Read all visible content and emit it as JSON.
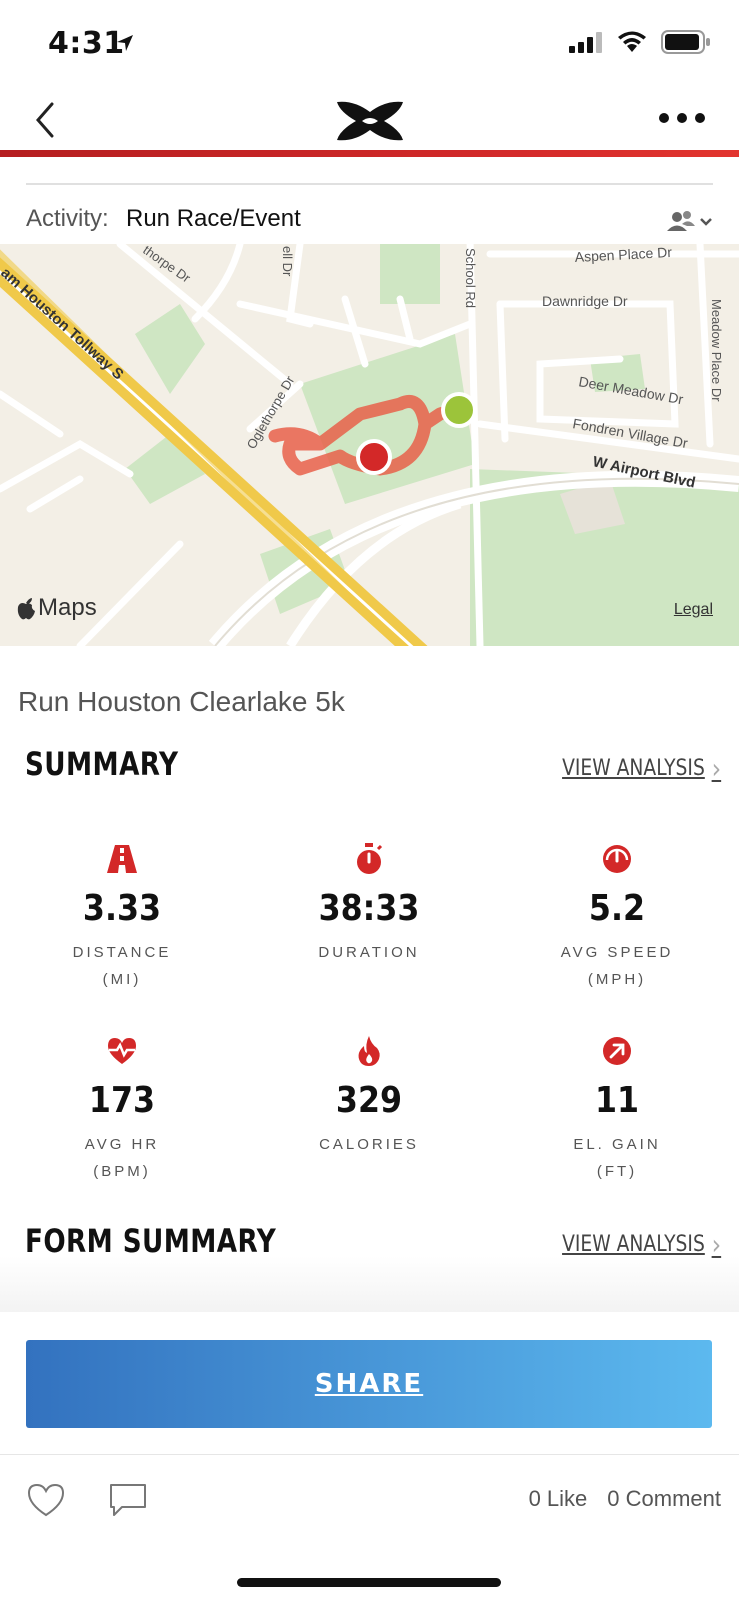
{
  "status_bar": {
    "time": "4:31"
  },
  "activity": {
    "label": "Activity:",
    "value": "Run Race/Event"
  },
  "map": {
    "attribution": "Maps",
    "legal": "Legal",
    "streets": [
      "am Houston Tollway S",
      "thorpe Dr",
      "ell Dr",
      "School Rd",
      "Aspen Place Dr",
      "Dawnridge Dr",
      "Meadow Place Dr",
      "Deer Meadow Dr",
      "Fondren Village Dr",
      "W Airport Blvd",
      "Oglethorpe Dr"
    ],
    "colors": {
      "route": "#e8604a",
      "start": "#9cc43a",
      "end": "#d32828"
    }
  },
  "run_title": "Run Houston Clearlake 5k",
  "summary": {
    "heading": "SUMMARY",
    "view_link": "VIEW ANALYSIS",
    "stats": [
      {
        "icon": "road-icon",
        "value": "3.33",
        "label": "DISTANCE",
        "unit": "(MI)"
      },
      {
        "icon": "stopwatch-icon",
        "value": "38:33",
        "label": "DURATION",
        "unit": ""
      },
      {
        "icon": "speedometer-icon",
        "value": "5.2",
        "label": "AVG SPEED",
        "unit": "(MPH)"
      },
      {
        "icon": "heart-rate-icon",
        "value": "173",
        "label": "AVG HR",
        "unit": "(BPM)"
      },
      {
        "icon": "flame-icon",
        "value": "329",
        "label": "CALORIES",
        "unit": ""
      },
      {
        "icon": "elevation-icon",
        "value": "11",
        "label": "EL. GAIN",
        "unit": "(FT)"
      }
    ]
  },
  "form_summary": {
    "heading": "FORM SUMMARY",
    "view_link": "VIEW ANALYSIS"
  },
  "share": {
    "label": "SHARE"
  },
  "social": {
    "likes": "0 Like",
    "comments": "0 Comment"
  },
  "accent_color": "#d32828"
}
